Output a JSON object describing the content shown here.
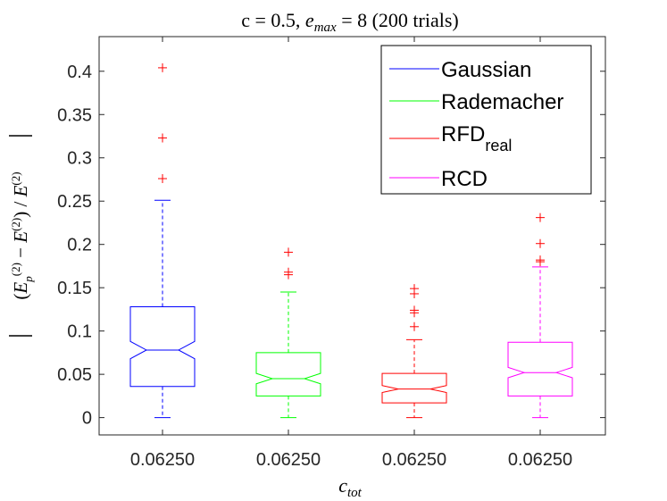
{
  "chart_data": {
    "type": "boxplot",
    "title": "c = 0.5, e_max = 8 (200 trials)",
    "title_parts": {
      "lhs": "c = 0.5, ",
      "e": "e",
      "e_sub": "max",
      "rhs": " = 8 (200 trials)"
    },
    "xlabel": "c_tot",
    "xlabel_parts": {
      "main": "c",
      "sub": "tot"
    },
    "ylabel": "|(E_p^(2) − E^(2)) / E^(2)|",
    "ylim": [
      -0.02,
      0.44
    ],
    "yticks": [
      0,
      0.05,
      0.1,
      0.15,
      0.2,
      0.25,
      0.3,
      0.35,
      0.4
    ],
    "ytick_labels": [
      "0",
      "0.05",
      "0.1",
      "0.15",
      "0.2",
      "0.25",
      "0.3",
      "0.35",
      "0.4"
    ],
    "categories": [
      "0.06250",
      "0.06250",
      "0.06250",
      "0.06250"
    ],
    "notched": true,
    "series": [
      {
        "name": "Gaussian",
        "legend_label": "Gaussian",
        "color": "#0000ff",
        "whisker_low": 0.0,
        "q1": 0.036,
        "median": 0.078,
        "q3": 0.128,
        "whisker_high": 0.251,
        "notch_low": 0.068,
        "notch_high": 0.088,
        "outliers": [
          0.276,
          0.323,
          0.404
        ]
      },
      {
        "name": "Rademacher",
        "legend_label": "Rademacher",
        "color": "#00ff00",
        "whisker_low": 0.0,
        "q1": 0.025,
        "median": 0.045,
        "q3": 0.075,
        "whisker_high": 0.145,
        "notch_low": 0.039,
        "notch_high": 0.051,
        "outliers": [
          0.165,
          0.168,
          0.191
        ]
      },
      {
        "name": "RFD_real",
        "legend_label": "RFD",
        "legend_sub": "real",
        "color": "#ff0000",
        "whisker_low": 0.0,
        "q1": 0.017,
        "median": 0.033,
        "q3": 0.051,
        "whisker_high": 0.09,
        "notch_low": 0.029,
        "notch_high": 0.037,
        "outliers": [
          0.105,
          0.121,
          0.124,
          0.143,
          0.149
        ]
      },
      {
        "name": "RCD",
        "legend_label": "RCD",
        "color": "#ff00ff",
        "whisker_low": 0.0,
        "q1": 0.025,
        "median": 0.052,
        "q3": 0.087,
        "whisker_high": 0.174,
        "notch_low": 0.046,
        "notch_high": 0.058,
        "outliers": [
          0.18,
          0.182,
          0.201,
          0.231
        ]
      }
    ],
    "legend_position": "top-right",
    "grid": false
  }
}
